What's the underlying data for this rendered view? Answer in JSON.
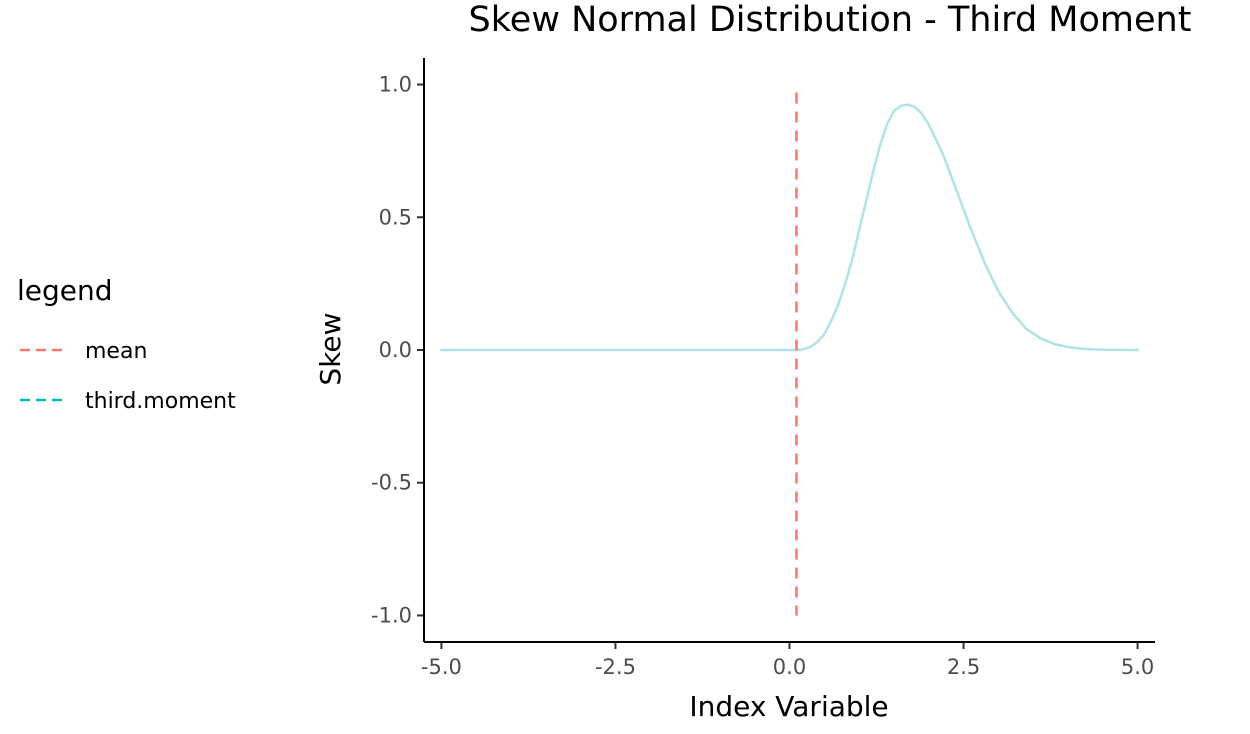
{
  "chart_data": {
    "type": "line",
    "title": "Skew Normal Distribution - Third Moment",
    "xlabel": "Index Variable",
    "ylabel": "Skew",
    "xlim": [
      -5.25,
      5.25
    ],
    "ylim": [
      -1.1,
      1.1
    ],
    "x_ticks": [
      -5.0,
      -2.5,
      0.0,
      2.5,
      5.0
    ],
    "x_tick_labels": [
      "-5.0",
      "-2.5",
      "0.0",
      "2.5",
      "5.0"
    ],
    "y_ticks": [
      -1.0,
      -0.5,
      0.0,
      0.5,
      1.0
    ],
    "y_tick_labels": [
      "-1.0",
      "-0.5",
      "0.0",
      "0.5",
      "1.0"
    ],
    "grid": false,
    "legend": {
      "title": "legend",
      "position": "left",
      "entries": [
        {
          "label": "mean",
          "color": "#F8766D",
          "linetype": "dashed"
        },
        {
          "label": "third.moment",
          "color": "#00BFC4",
          "linetype": "dashed"
        }
      ]
    },
    "series": [
      {
        "name": "third.moment",
        "color": "#B0E3E8",
        "points": [
          [
            -5.0,
            0.0
          ],
          [
            -4.0,
            0.0
          ],
          [
            -3.0,
            0.0
          ],
          [
            -2.0,
            0.0
          ],
          [
            -1.0,
            0.0
          ],
          [
            0.0,
            0.0
          ],
          [
            0.1,
            0.0
          ],
          [
            0.2,
            0.003
          ],
          [
            0.3,
            0.012
          ],
          [
            0.4,
            0.03
          ],
          [
            0.5,
            0.06
          ],
          [
            0.6,
            0.11
          ],
          [
            0.7,
            0.17
          ],
          [
            0.8,
            0.25
          ],
          [
            0.9,
            0.34
          ],
          [
            1.0,
            0.45
          ],
          [
            1.1,
            0.56
          ],
          [
            1.2,
            0.67
          ],
          [
            1.3,
            0.77
          ],
          [
            1.4,
            0.85
          ],
          [
            1.5,
            0.9
          ],
          [
            1.6,
            0.92
          ],
          [
            1.7,
            0.925
          ],
          [
            1.8,
            0.915
          ],
          [
            1.9,
            0.89
          ],
          [
            2.0,
            0.85
          ],
          [
            2.2,
            0.74
          ],
          [
            2.4,
            0.6
          ],
          [
            2.6,
            0.46
          ],
          [
            2.8,
            0.33
          ],
          [
            3.0,
            0.22
          ],
          [
            3.2,
            0.14
          ],
          [
            3.4,
            0.08
          ],
          [
            3.6,
            0.045
          ],
          [
            3.8,
            0.023
          ],
          [
            4.0,
            0.011
          ],
          [
            4.2,
            0.005
          ],
          [
            4.5,
            0.001
          ],
          [
            5.0,
            0.0
          ]
        ]
      },
      {
        "name": "mean",
        "color": "#F8766D",
        "linetype": "dashed",
        "vline_x": 0.1,
        "y_range": [
          -1.0,
          0.97
        ]
      }
    ]
  }
}
